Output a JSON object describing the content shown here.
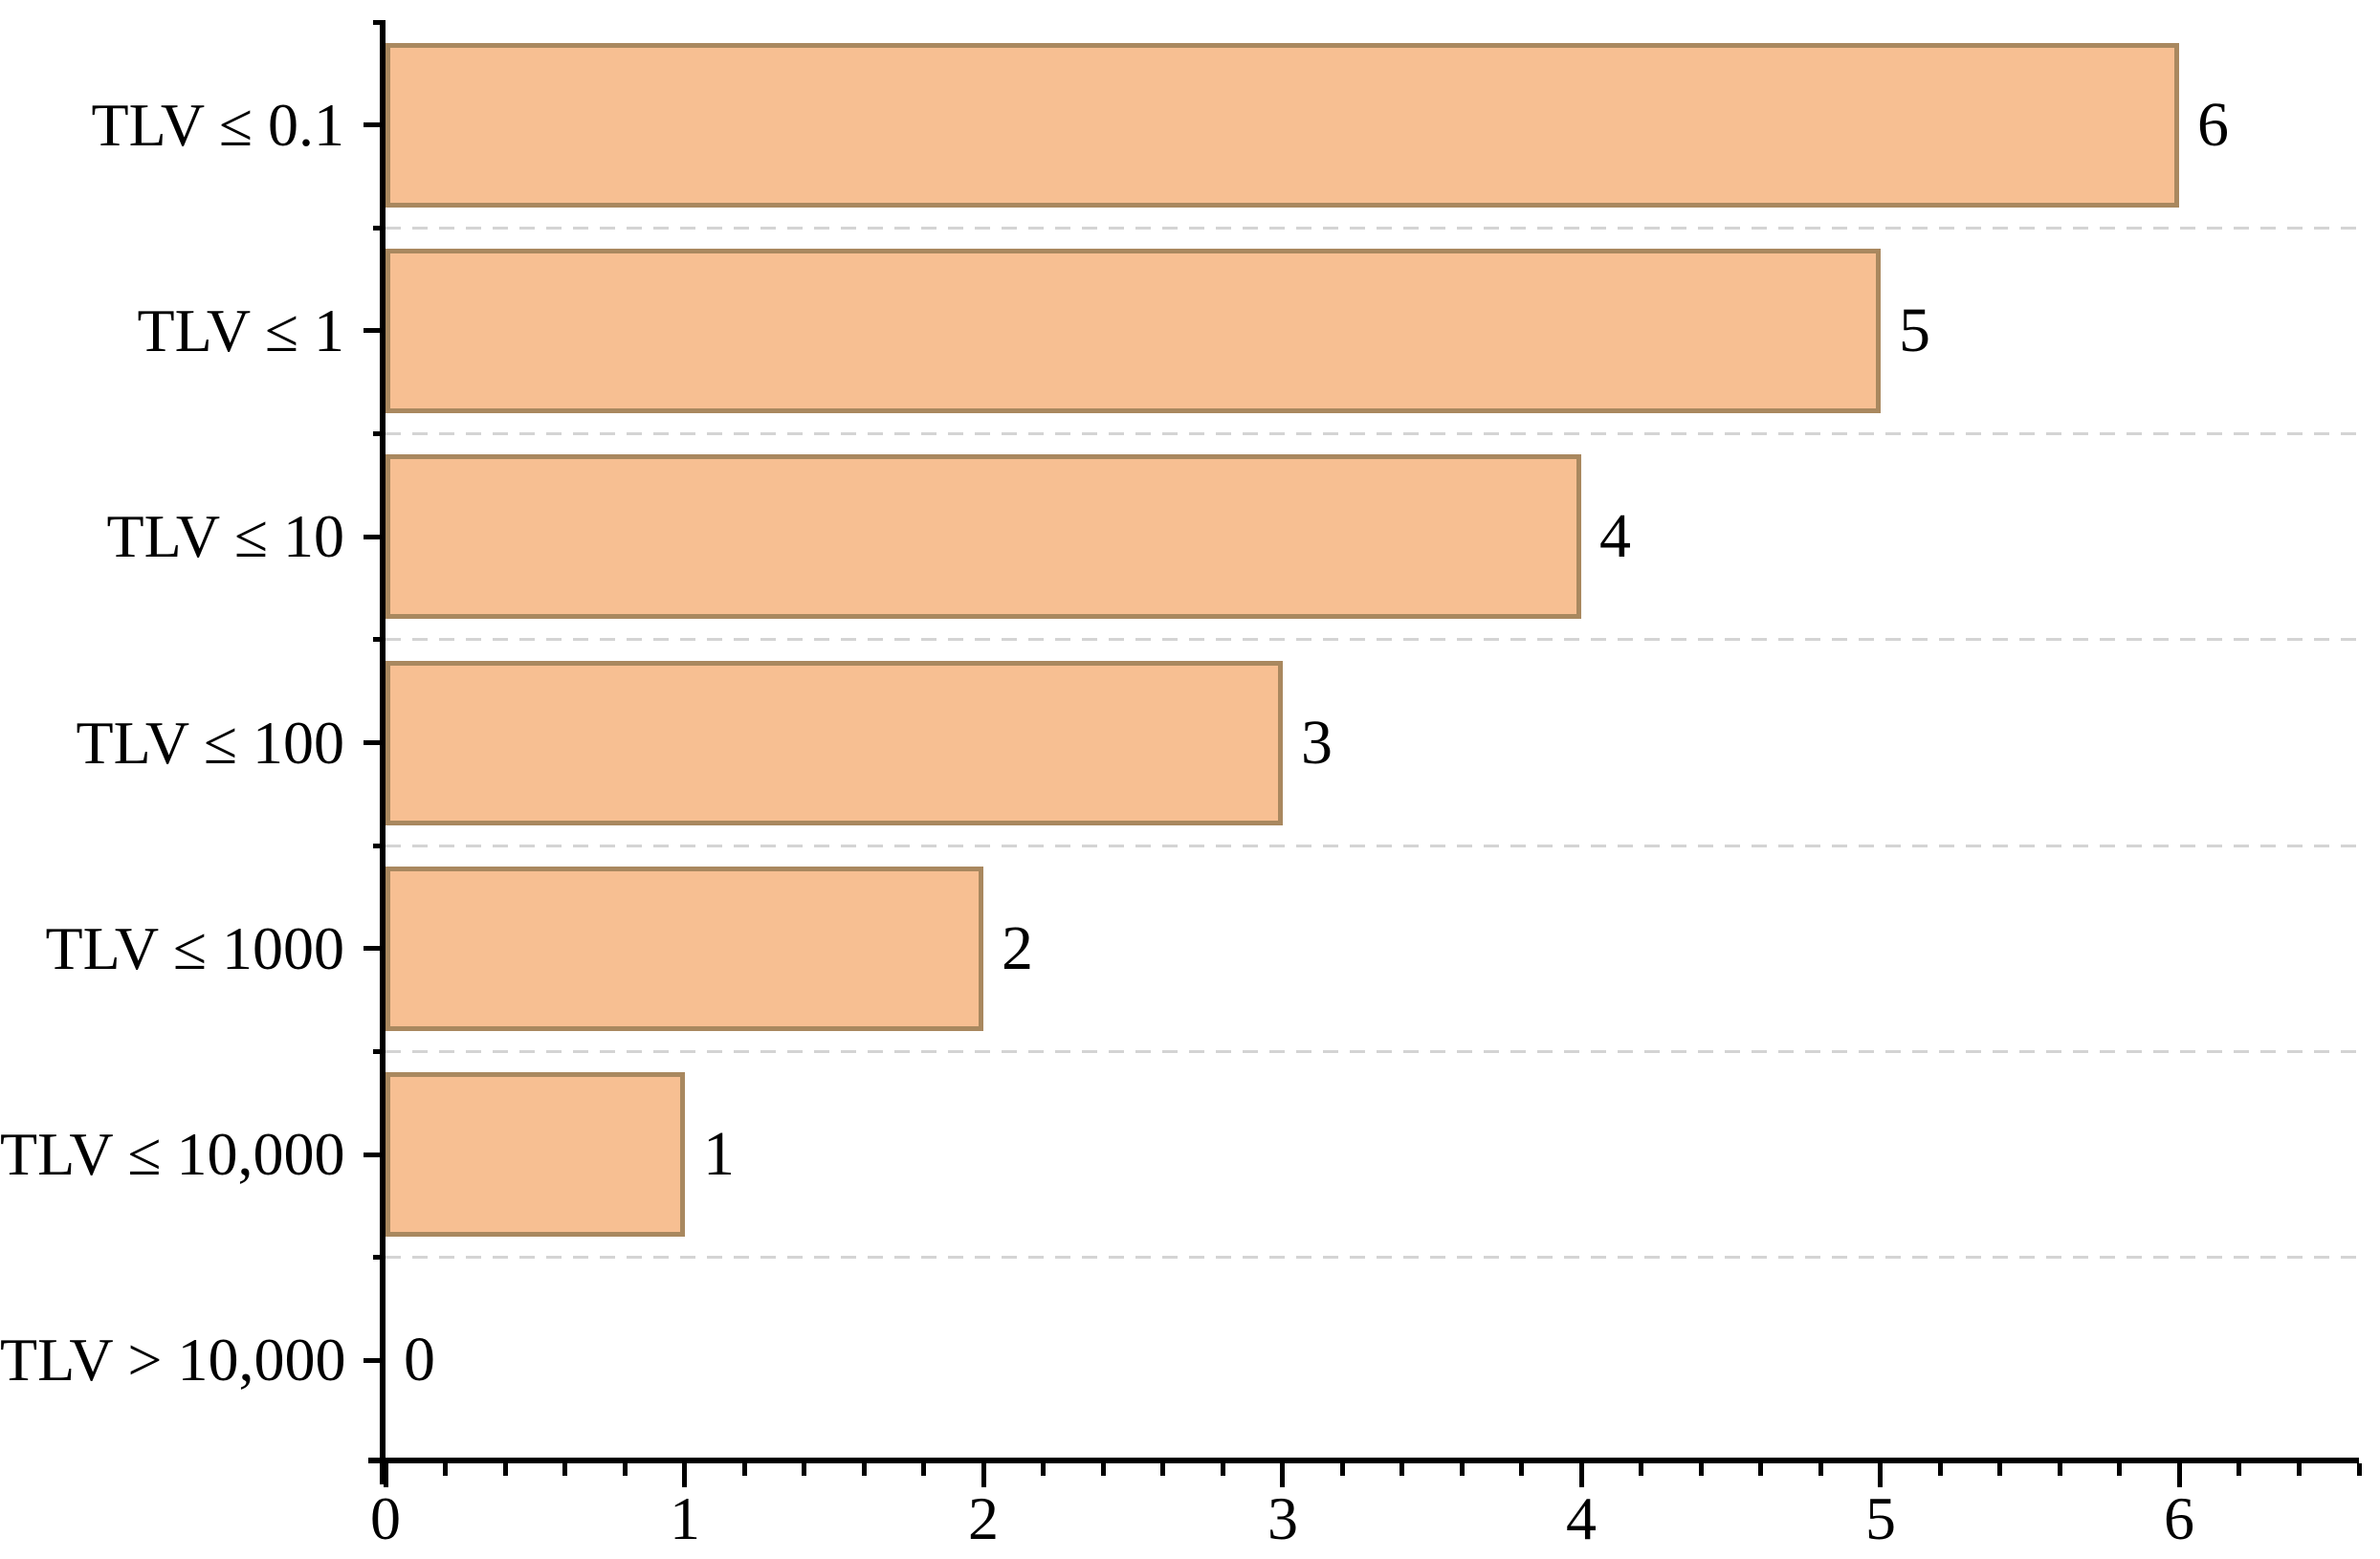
{
  "chart_data": {
    "type": "bar",
    "orientation": "horizontal",
    "title": "",
    "xlabel": "",
    "ylabel": "",
    "categories": [
      "TLV ≤ 0.1",
      "TLV ≤ 1",
      "TLV ≤ 10",
      "TLV ≤ 100",
      "TLV ≤ 1000",
      "TLV ≤ 10,000",
      "TLV > 10,000"
    ],
    "values": [
      6,
      5,
      4,
      3,
      2,
      1,
      0
    ],
    "bar_value_labels": [
      "6",
      "5",
      "4",
      "3",
      "2",
      "1",
      "0"
    ],
    "xlim": [
      0,
      6.6
    ],
    "x_major_ticks": [
      0,
      1,
      2,
      3,
      4,
      5,
      6
    ],
    "x_major_tick_labels": [
      "0",
      "1",
      "2",
      "3",
      "4",
      "5",
      "6"
    ],
    "x_minor_tick_step": 0.2,
    "grid": "dashed lines at category boundaries, horizontal extent of plot",
    "legend_position": "none",
    "colors": {
      "bar_fill": "#F7BF92",
      "bar_border": "#A9885F",
      "gridline": "#D4D4D4",
      "axis": "#000000",
      "text": "#000000",
      "background": "#FFFFFF"
    }
  }
}
